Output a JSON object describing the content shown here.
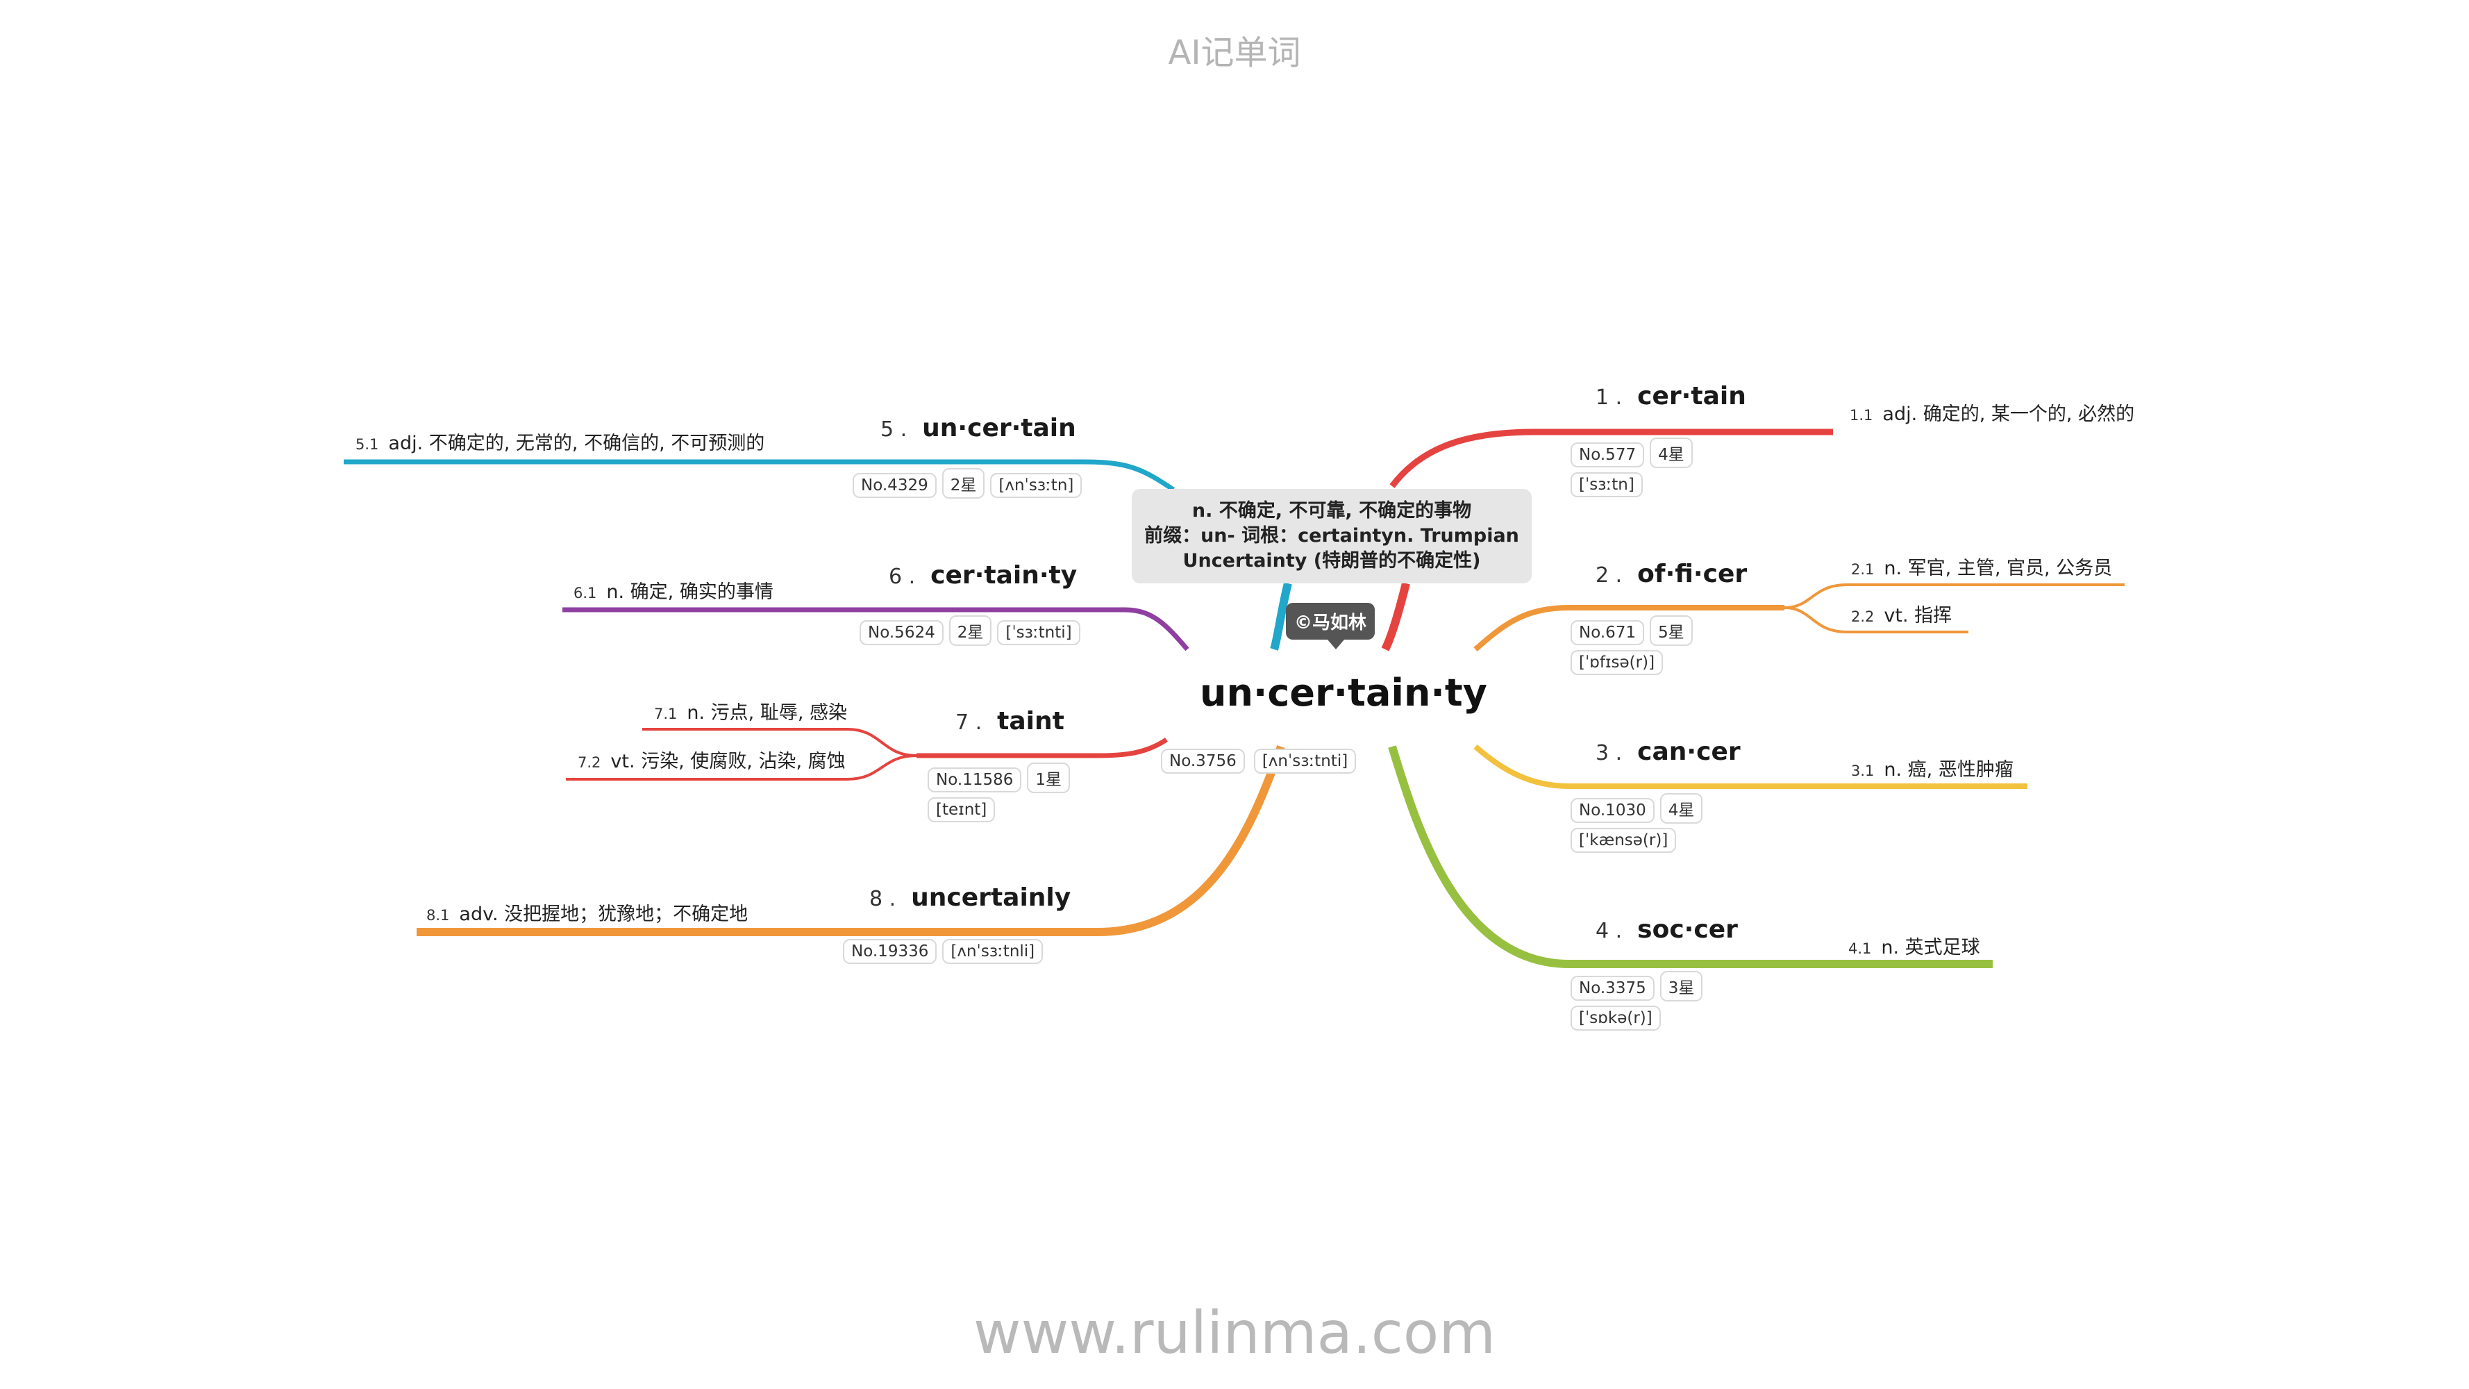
{
  "header": "AI记单词",
  "footer": "www.rulinma.com",
  "center": {
    "word": "un·cer·tain·ty",
    "no": "No.3756",
    "phonetic": "[ʌnˈsɜːtnti]",
    "note_lines": [
      "n. 不确定, 不可靠, 不确定的事物",
      "前缀：un- 词根：certaintyn. Trumpian",
      "Uncertainty (特朗普的不确定性)"
    ],
    "watermark": "©马如林"
  },
  "branches": [
    {
      "num": "1 .",
      "word": "cer·tain",
      "badges": [
        "No.577",
        "4星",
        "[ˈsɜːtn]"
      ],
      "color": "#e5433f",
      "meanings": [
        {
          "idx": "1.1",
          "text": "adj. 确定的, 某一个的, 必然的"
        }
      ]
    },
    {
      "num": "2 .",
      "word": "of·fi·cer",
      "badges": [
        "No.671",
        "5星",
        "[ˈɒfɪsə(r)]"
      ],
      "color": "#f0973a",
      "meanings": [
        {
          "idx": "2.1",
          "text": "n. 军官, 主管, 官员, 公务员"
        },
        {
          "idx": "2.2",
          "text": "vt. 指挥"
        }
      ]
    },
    {
      "num": "3 .",
      "word": "can·cer",
      "badges": [
        "No.1030",
        "4星",
        "[ˈkænsə(r)]"
      ],
      "color": "#f2c23e",
      "meanings": [
        {
          "idx": "3.1",
          "text": "n. 癌, 恶性肿瘤"
        }
      ]
    },
    {
      "num": "4 .",
      "word": "soc·cer",
      "badges": [
        "No.3375",
        "3星",
        "[ˈsɒkə(r)]"
      ],
      "color": "#97c041",
      "meanings": [
        {
          "idx": "4.1",
          "text": "n. 英式足球"
        }
      ]
    },
    {
      "num": "5 .",
      "word": "un·cer·tain",
      "badges": [
        "No.4329",
        "2星",
        "[ʌnˈsɜːtn]"
      ],
      "color": "#20a7c9",
      "meanings": [
        {
          "idx": "5.1",
          "text": "adj. 不确定的, 无常的, 不确信的, 不可预测的"
        }
      ]
    },
    {
      "num": "6 .",
      "word": "cer·tain·ty",
      "badges": [
        "No.5624",
        "2星",
        "[ˈsɜːtnti]"
      ],
      "color": "#8e3fa0",
      "meanings": [
        {
          "idx": "6.1",
          "text": "n. 确定, 确实的事情"
        }
      ]
    },
    {
      "num": "7 .",
      "word": "taint",
      "badges": [
        "No.11586",
        "1星",
        "[teɪnt]"
      ],
      "color": "#e5433f",
      "meanings": [
        {
          "idx": "7.1",
          "text": "n. 污点, 耻辱, 感染"
        },
        {
          "idx": "7.2",
          "text": "vt. 污染, 使腐败, 沾染, 腐蚀"
        }
      ]
    },
    {
      "num": "8 .",
      "word": "uncertainly",
      "badges": [
        "No.19336",
        "[ʌnˈsɜːtnli]"
      ],
      "color": "#f0973a",
      "meanings": [
        {
          "idx": "8.1",
          "text": "adv. 没把握地；犹豫地；不确定地"
        }
      ]
    }
  ]
}
